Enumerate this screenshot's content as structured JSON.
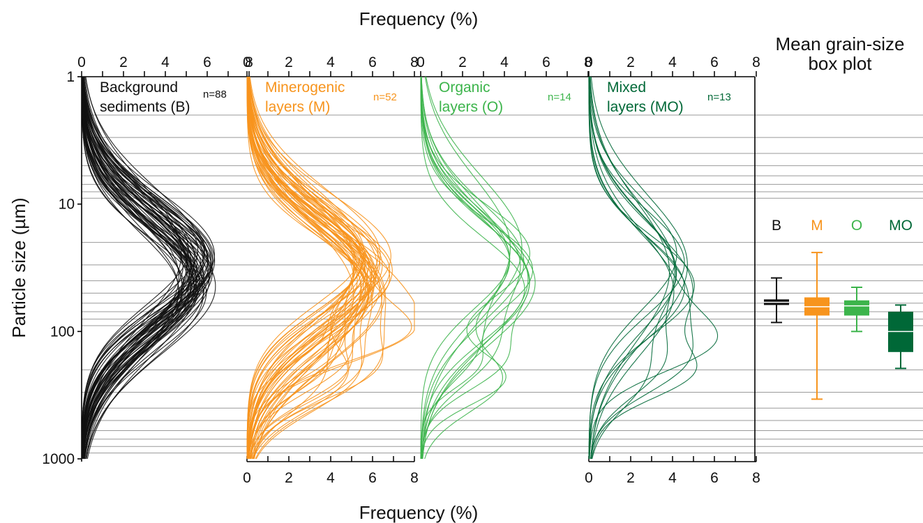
{
  "chart_data": {
    "type": "line",
    "title_top": "Frequency (%)",
    "title_bottom": "Frequency (%)",
    "ylabel": "Particle size (µm)",
    "yscale": "log",
    "ylim": [
      1,
      1000
    ],
    "y_ticks": [
      "1",
      "10",
      "100",
      "1000"
    ],
    "x_ticks": [
      "0",
      "2",
      "4",
      "6",
      "8"
    ],
    "xlim": [
      0,
      8
    ],
    "panels": [
      {
        "name": "Background sediments (B)",
        "label_line1": "Background",
        "label_line2": "sediments (B)",
        "n_label": "n=88",
        "color": "#111111",
        "mode_um": 34,
        "max_freq": 6.4,
        "curve_count": 88,
        "x_axis_position": "top"
      },
      {
        "name": "Minerogenic layers (M)",
        "label_line1": "Minerogenic",
        "label_line2": "layers (M)",
        "n_label": "n=52",
        "color": "#f7941d",
        "mode_um": 36,
        "max_freq": 7.0,
        "curve_count": 52,
        "x_axis_position": "top-and-bottom"
      },
      {
        "name": "Organic layers (O)",
        "label_line1": "Organic",
        "label_line2": "layers (O)",
        "n_label": "n=14",
        "color": "#3cb44b",
        "mode_um": 32,
        "max_freq": 5.6,
        "curve_count": 14,
        "x_axis_position": "top"
      },
      {
        "name": "Mixed layers (MO)",
        "label_line1": "Mixed",
        "label_line2": "layers (MO)",
        "n_label": "n=13",
        "color": "#006837",
        "mode_um": 36,
        "max_freq": 5.2,
        "curve_count": 13,
        "x_axis_position": "top-and-bottom"
      }
    ],
    "boxplot": {
      "title_line1": "Mean grain-size",
      "title_line2": "box plot",
      "boxes": [
        {
          "label": "B",
          "color": "#111111",
          "whisker_low_um": 38,
          "q1_um": 56,
          "median_um": 59,
          "q3_um": 62,
          "whisker_high_um": 85
        },
        {
          "label": "M",
          "color": "#f7941d",
          "whisker_low_um": 24,
          "q1_um": 54,
          "median_um": 64,
          "q3_um": 75,
          "whisker_high_um": 340
        },
        {
          "label": "O",
          "color": "#3cb44b",
          "whisker_low_um": 45,
          "q1_um": 57,
          "median_um": 63,
          "q3_um": 75,
          "whisker_high_um": 100
        },
        {
          "label": "MO",
          "color": "#006837",
          "whisker_low_um": 62,
          "q1_um": 70,
          "median_um": 100,
          "q3_um": 145,
          "whisker_high_um": 195
        }
      ]
    }
  }
}
